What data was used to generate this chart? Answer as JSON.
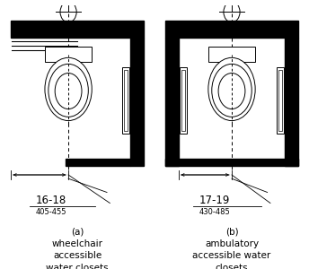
{
  "fig_width": 3.44,
  "fig_height": 3.0,
  "dpi": 100,
  "bg_color": "#ffffff",
  "lc": "#000000",
  "label_a": "(a)\nwheelchair\naccessible\nwater closets",
  "label_b": "(b)\nambulatory\naccessible water\nclosets",
  "dim_a_top": "16-18",
  "dim_a_bot": "405-455",
  "dim_b_top": "17-19",
  "dim_b_bot": "430-485",
  "font_size_label": 7.5,
  "font_size_dim_large": 8.5,
  "font_size_dim_small": 6.0,
  "wall_color": "#000000"
}
